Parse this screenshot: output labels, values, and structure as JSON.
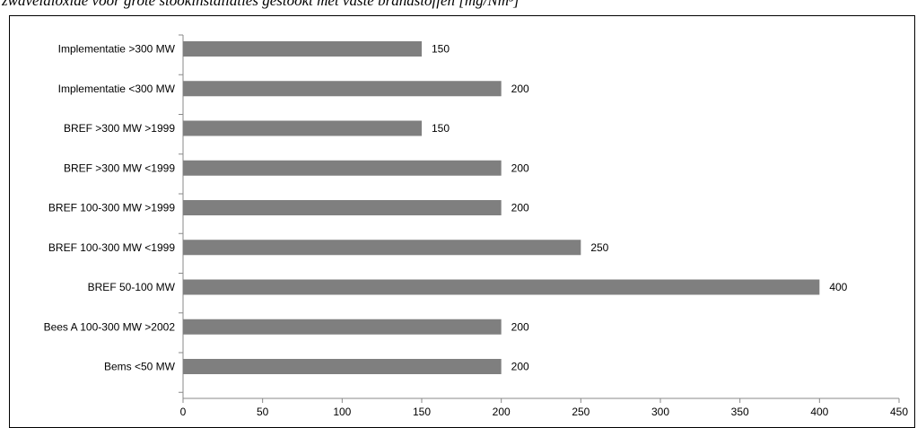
{
  "title": "zwaveldioxide voor grote stookinstallaties gestookt met vaste brandstoffen [mg/Nm³]",
  "colors": {
    "bar": "#7f7f7f",
    "axis": "#888888",
    "frame": "#000000",
    "text": "#000000"
  },
  "chart_data": {
    "type": "bar",
    "orientation": "horizontal",
    "categories": [
      "Implementatie >300 MW",
      "Implementatie <300 MW",
      "BREF >300 MW >1999",
      "BREF >300 MW <1999",
      "BREF 100-300 MW >1999",
      "BREF 100-300 MW <1999",
      "BREF 50-100 MW",
      "Bees A 100-300 MW >2002",
      "Bems <50 MW"
    ],
    "values": [
      150,
      200,
      150,
      200,
      200,
      250,
      400,
      200,
      200
    ],
    "xlim": [
      0,
      450
    ],
    "xticks": [
      0,
      50,
      100,
      150,
      200,
      250,
      300,
      350,
      400,
      450
    ],
    "xlabel": "",
    "ylabel": "",
    "grid": false,
    "legend": "none",
    "data_labels": true
  }
}
